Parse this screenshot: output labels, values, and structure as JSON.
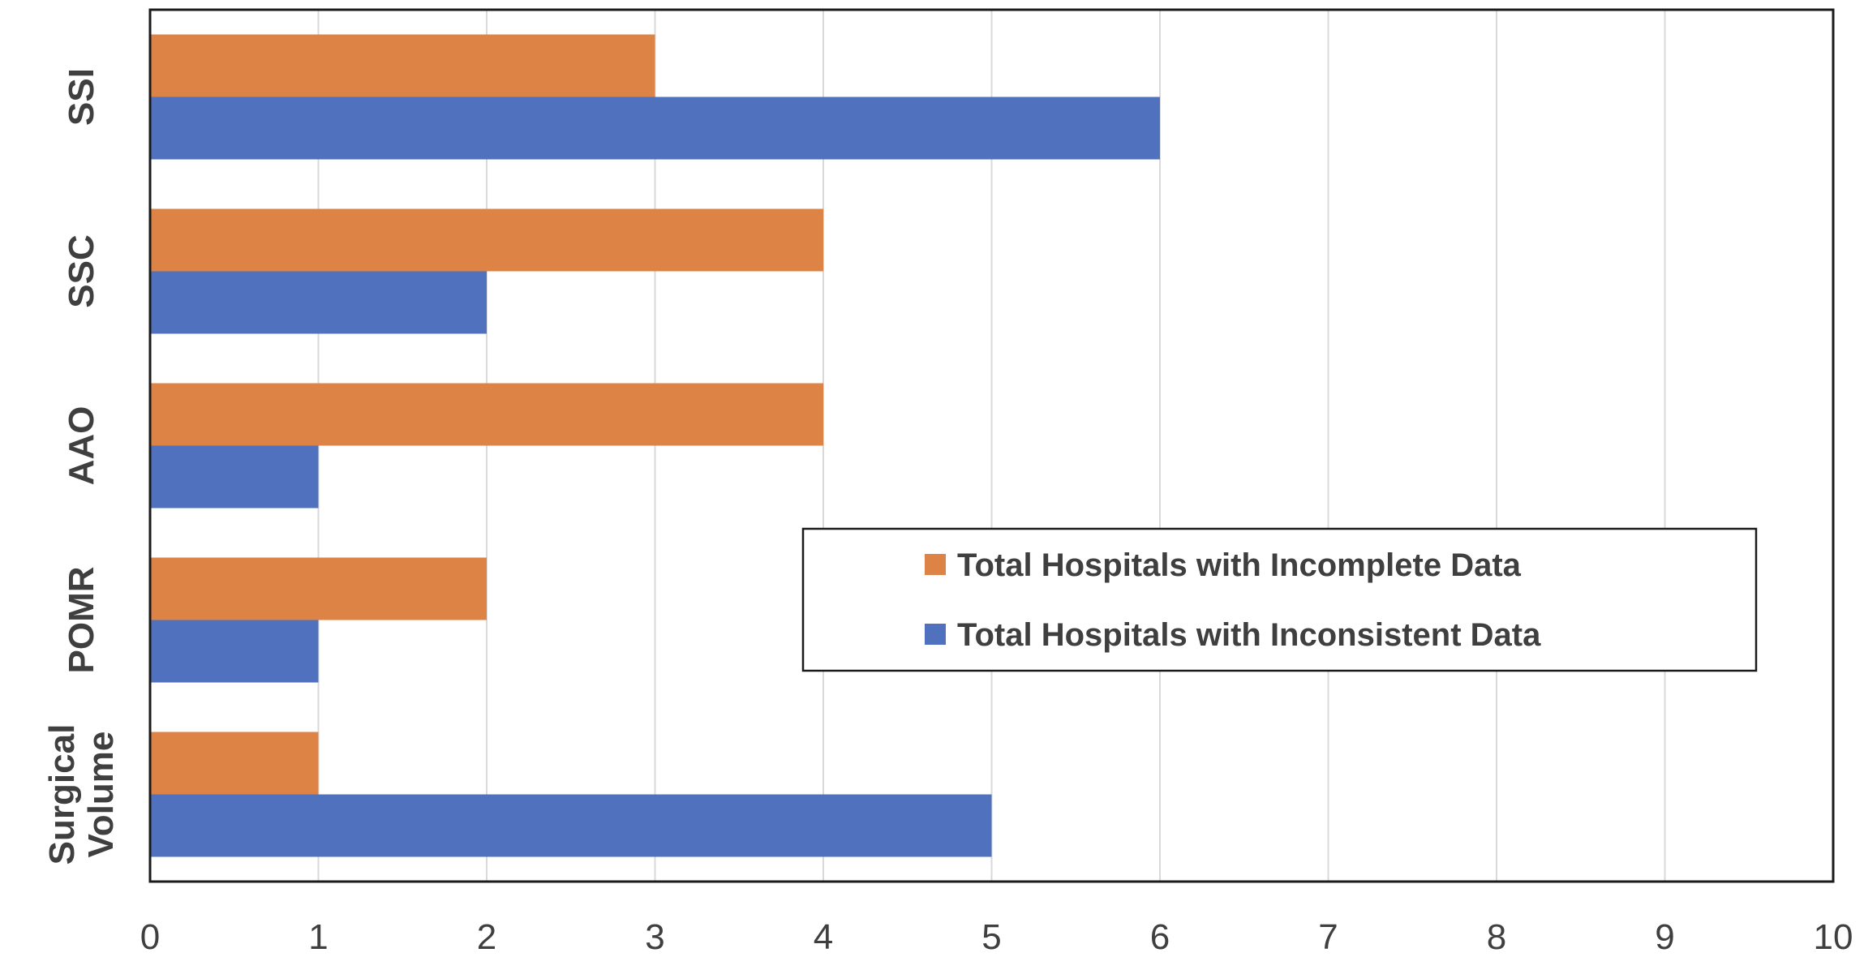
{
  "chart_data": {
    "type": "bar",
    "orientation": "horizontal",
    "categories": [
      "SSI",
      "SSC",
      "AAO",
      "POMR",
      "Surgical Volume"
    ],
    "category_lines": [
      [
        "SSI"
      ],
      [
        "SSC"
      ],
      [
        "AAO"
      ],
      [
        "POMR"
      ],
      [
        "Surgical",
        "Volume"
      ]
    ],
    "series": [
      {
        "name": "Total Hospitals with Incomplete Data",
        "color": "#DD8346",
        "values": [
          3,
          4,
          4,
          2,
          1
        ]
      },
      {
        "name": "Total Hospitals with Inconsistent Data",
        "color": "#4F71BE",
        "values": [
          6,
          2,
          1,
          1,
          5
        ]
      }
    ],
    "xlim": [
      0,
      10
    ],
    "xticks": [
      "0",
      "1",
      "2",
      "3",
      "4",
      "5",
      "6",
      "7",
      "8",
      "9",
      "10"
    ],
    "title": "",
    "xlabel": "",
    "ylabel": "",
    "grid": "vertical",
    "legend_position": "center-right",
    "category_label_rotation": "vertical"
  }
}
